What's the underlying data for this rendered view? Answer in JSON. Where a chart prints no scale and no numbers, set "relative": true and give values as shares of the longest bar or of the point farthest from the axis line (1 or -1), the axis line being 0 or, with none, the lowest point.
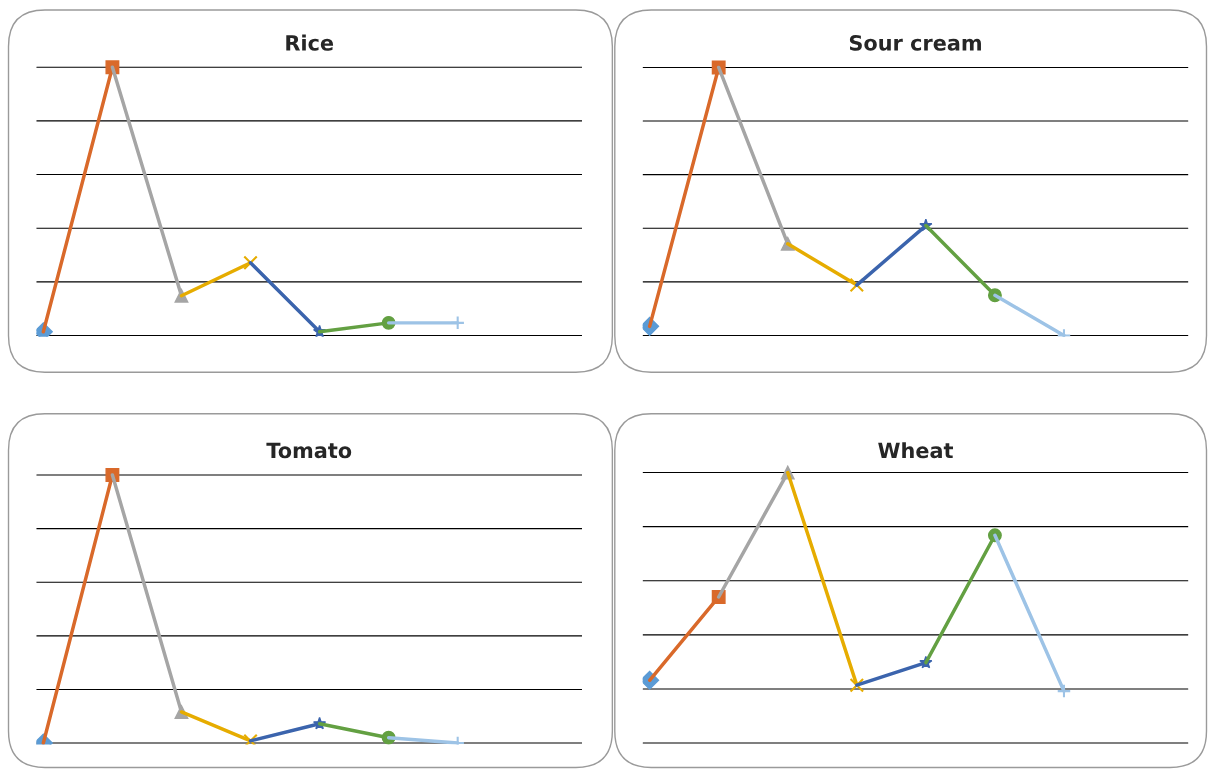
{
  "chart_data": [
    {
      "type": "line",
      "title": "Rice",
      "relative": true,
      "grid": "y",
      "categories": [
        null,
        null,
        null,
        null,
        null,
        null,
        null
      ],
      "series": [
        {
          "color": "#5b9bd5",
          "marker": "diamond",
          "values": [
            0.014,
            null,
            null,
            null,
            null,
            null,
            null
          ]
        },
        {
          "color": "#d9692a",
          "marker": "square",
          "values": [
            0.014,
            1,
            null,
            null,
            null,
            null,
            null
          ]
        },
        {
          "color": "#a5a5a5",
          "marker": "triangle",
          "values": [
            null,
            1,
            0.148,
            null,
            null,
            null,
            null
          ]
        },
        {
          "color": "#e6ac00",
          "marker": "cross",
          "values": [
            null,
            null,
            0.148,
            0.271,
            null,
            null,
            null
          ]
        },
        {
          "color": "#3b64ad",
          "marker": "star",
          "values": [
            null,
            null,
            null,
            0.271,
            0.014,
            null,
            null
          ]
        },
        {
          "color": "#63a042",
          "marker": "circle",
          "values": [
            null,
            null,
            null,
            null,
            0.014,
            0.047,
            null
          ]
        },
        {
          "color": "#9dc3e6",
          "marker": "plus",
          "values": [
            null,
            null,
            null,
            null,
            null,
            0.047,
            0.047
          ]
        }
      ]
    },
    {
      "type": "line",
      "title": "Sour cream",
      "relative": true,
      "grid": "y",
      "categories": [
        null,
        null,
        null,
        null,
        null,
        null,
        null
      ],
      "series": [
        {
          "color": "#5b9bd5",
          "marker": "diamond",
          "values": [
            0.034,
            null,
            null,
            null,
            null,
            null,
            null
          ]
        },
        {
          "color": "#d9692a",
          "marker": "square",
          "values": [
            0.034,
            1,
            null,
            null,
            null,
            null,
            null
          ]
        },
        {
          "color": "#a5a5a5",
          "marker": "triangle",
          "values": [
            null,
            1,
            0.342,
            null,
            null,
            null,
            null
          ]
        },
        {
          "color": "#e6ac00",
          "marker": "cross",
          "values": [
            null,
            null,
            0.342,
            0.188,
            null,
            null,
            null
          ]
        },
        {
          "color": "#3b64ad",
          "marker": "star",
          "values": [
            null,
            null,
            null,
            0.188,
            0.41,
            null,
            null
          ]
        },
        {
          "color": "#63a042",
          "marker": "circle",
          "values": [
            null,
            null,
            null,
            null,
            0.41,
            0.15,
            null
          ]
        },
        {
          "color": "#9dc3e6",
          "marker": "plus",
          "values": [
            null,
            null,
            null,
            null,
            null,
            0.15,
            0
          ]
        }
      ]
    },
    {
      "type": "line",
      "title": "Tomato",
      "relative": true,
      "grid": "y",
      "categories": [
        null,
        null,
        null,
        null,
        null,
        null,
        null
      ],
      "series": [
        {
          "color": "#5b9bd5",
          "marker": "diamond",
          "values": [
            0,
            null,
            null,
            null,
            null,
            null,
            null
          ]
        },
        {
          "color": "#d9692a",
          "marker": "square",
          "values": [
            0,
            1,
            null,
            null,
            null,
            null,
            null
          ]
        },
        {
          "color": "#a5a5a5",
          "marker": "triangle",
          "values": [
            null,
            1,
            0.116,
            null,
            null,
            null,
            null
          ]
        },
        {
          "color": "#e6ac00",
          "marker": "cross",
          "values": [
            null,
            null,
            0.116,
            0.008,
            null,
            null,
            null
          ]
        },
        {
          "color": "#3b64ad",
          "marker": "star",
          "values": [
            null,
            null,
            null,
            0.008,
            0.072,
            null,
            null
          ]
        },
        {
          "color": "#63a042",
          "marker": "circle",
          "values": [
            null,
            null,
            null,
            null,
            0.072,
            0.02,
            null
          ]
        },
        {
          "color": "#9dc3e6",
          "marker": "plus",
          "values": [
            null,
            null,
            null,
            null,
            null,
            0.02,
            0
          ]
        }
      ]
    },
    {
      "type": "line",
      "title": "Wheat",
      "relative": true,
      "grid": "y",
      "categories": [
        null,
        null,
        null,
        null,
        null,
        null,
        null
      ],
      "series": [
        {
          "color": "#5b9bd5",
          "marker": "diamond",
          "values": [
            0.232,
            null,
            null,
            null,
            null,
            null,
            null
          ]
        },
        {
          "color": "#d9692a",
          "marker": "square",
          "values": [
            0.232,
            0.54,
            null,
            null,
            null,
            null,
            null
          ]
        },
        {
          "color": "#a5a5a5",
          "marker": "triangle",
          "values": [
            null,
            0.54,
            1,
            null,
            null,
            null,
            null
          ]
        },
        {
          "color": "#e6ac00",
          "marker": "cross",
          "values": [
            null,
            null,
            1,
            0.214,
            null,
            null,
            null
          ]
        },
        {
          "color": "#3b64ad",
          "marker": "star",
          "values": [
            null,
            null,
            null,
            0.214,
            0.297,
            null,
            null
          ]
        },
        {
          "color": "#63a042",
          "marker": "circle",
          "values": [
            null,
            null,
            null,
            null,
            0.297,
            0.768,
            null
          ]
        },
        {
          "color": "#9dc3e6",
          "marker": "plus",
          "values": [
            null,
            null,
            null,
            null,
            null,
            0.768,
            0.192
          ]
        }
      ]
    }
  ]
}
